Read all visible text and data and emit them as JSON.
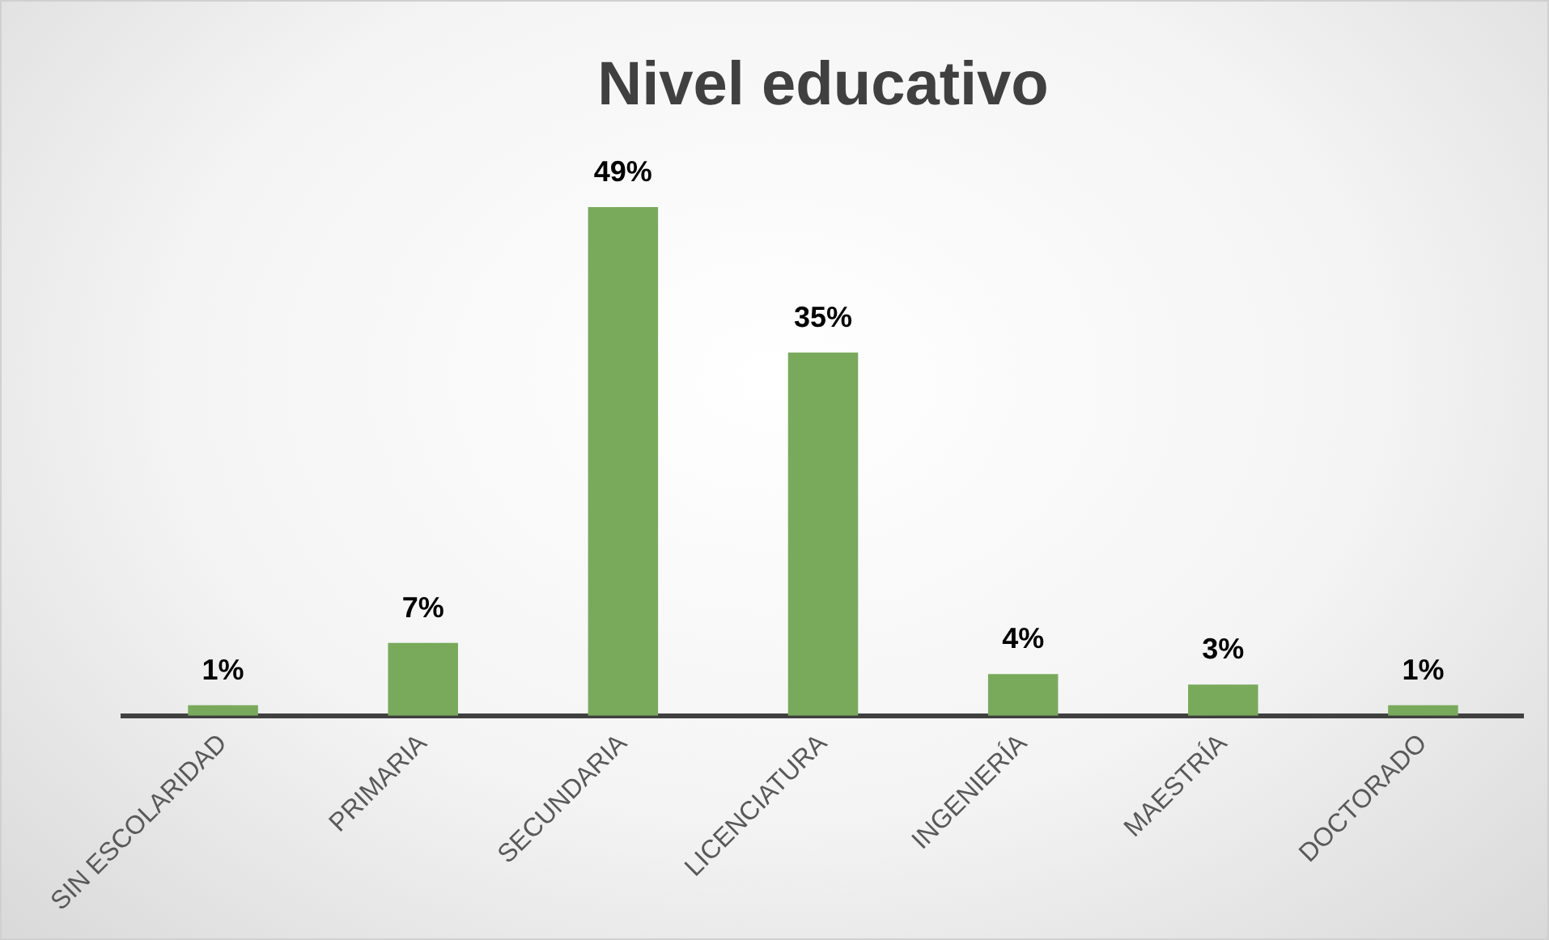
{
  "chart_data": {
    "type": "bar",
    "title": "Nivel educativo",
    "categories": [
      "SIN ESCOLARIDAD",
      "PRIMARIA",
      "SECUNDARIA",
      "LICENCIATURA",
      "INGENIERÍA",
      "MAESTRÍA",
      "DOCTORADO"
    ],
    "values": [
      1,
      7,
      49,
      35,
      4,
      3,
      1
    ],
    "value_labels": [
      "1%",
      "7%",
      "49%",
      "35%",
      "4%",
      "3%",
      "1%"
    ],
    "color": "#79aa5b",
    "grid": false,
    "legend": false
  }
}
